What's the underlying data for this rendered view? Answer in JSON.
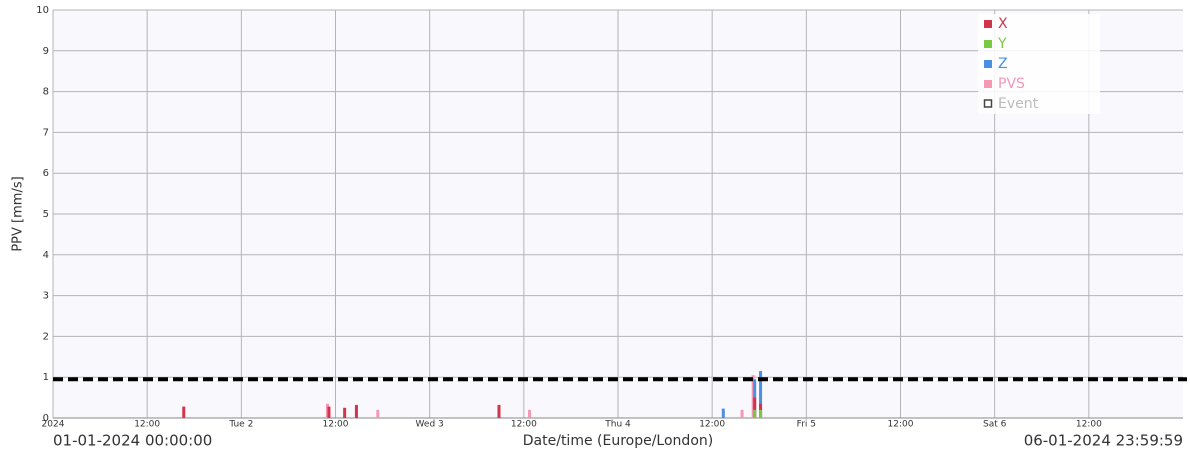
{
  "chart_data": {
    "type": "bar",
    "y_label": "PPV [mm/s]",
    "x_label": "Date/time (Europe/London)",
    "start_label": "01-01-2024 00:00:00",
    "end_label": "06-01-2024 23:59:59",
    "xlim": [
      "2024-01-01T00:00:00",
      "2024-01-06T23:59:59"
    ],
    "xticks": [
      {
        "value": "2024-01-01T00:00:00",
        "label": "2024"
      },
      {
        "value": "2024-01-01T12:00:00",
        "label": "12:00"
      },
      {
        "value": "2024-01-02T00:00:00",
        "label": "Tue 2"
      },
      {
        "value": "2024-01-02T12:00:00",
        "label": "12:00"
      },
      {
        "value": "2024-01-03T00:00:00",
        "label": "Wed 3"
      },
      {
        "value": "2024-01-03T12:00:00",
        "label": "12:00"
      },
      {
        "value": "2024-01-04T00:00:00",
        "label": "Thu 4"
      },
      {
        "value": "2024-01-04T12:00:00",
        "label": "12:00"
      },
      {
        "value": "2024-01-05T00:00:00",
        "label": "Fri 5"
      },
      {
        "value": "2024-01-05T12:00:00",
        "label": "12:00"
      },
      {
        "value": "2024-01-06T00:00:00",
        "label": "Sat 6"
      },
      {
        "value": "2024-01-06T12:00:00",
        "label": "12:00"
      }
    ],
    "ylim": [
      0,
      10
    ],
    "yticks": [
      0,
      1,
      2,
      3,
      4,
      5,
      6,
      7,
      8,
      9,
      10
    ],
    "grid": true,
    "threshold": 0.95,
    "x": [
      "2024-01-01T16:40:00",
      "2024-01-02T11:10:00",
      "2024-01-02T13:10:00",
      "2024-01-02T14:40:00",
      "2024-01-02T17:35:00",
      "2024-01-03T08:50:00",
      "2024-01-03T12:55:00",
      "2024-01-04T13:25:00",
      "2024-01-04T16:00:00",
      "2024-01-04T17:25:00",
      "2024-01-04T18:10:00"
    ],
    "series": [
      {
        "name": "PVS",
        "color": "#f598b4",
        "values": [
          null,
          0.35,
          null,
          null,
          0.2,
          null,
          0.2,
          null,
          0.2,
          1.05,
          null
        ]
      },
      {
        "name": "Z",
        "color": "#4a90e2",
        "values": [
          null,
          null,
          null,
          null,
          null,
          null,
          null,
          0.23,
          null,
          0.95,
          1.15
        ]
      },
      {
        "name": "X",
        "color": "#d1344b",
        "values": [
          0.28,
          0.28,
          0.25,
          0.32,
          null,
          0.32,
          null,
          null,
          null,
          0.5,
          0.35
        ]
      },
      {
        "name": "Y",
        "color": "#7ac943",
        "values": [
          null,
          null,
          null,
          null,
          null,
          null,
          null,
          null,
          null,
          0.2,
          0.2
        ]
      }
    ],
    "legend_order": [
      2,
      3,
      1,
      0
    ],
    "event_legend": {
      "name": "Event",
      "color": "#bbbbbb"
    }
  }
}
